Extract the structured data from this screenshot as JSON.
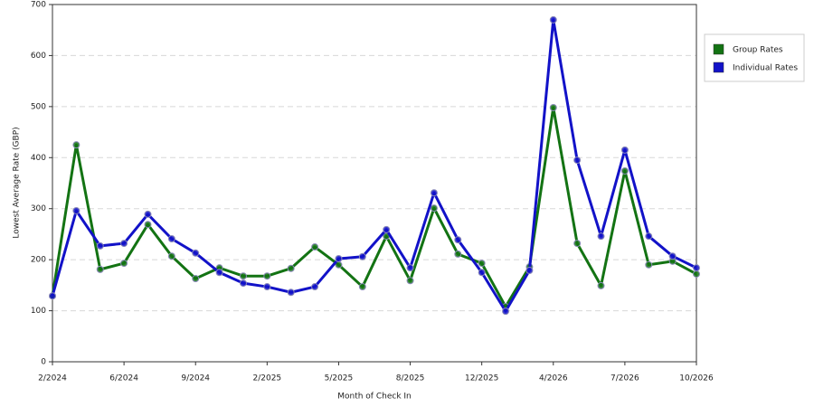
{
  "chart_data": {
    "type": "line",
    "x_label": "Month of Check In",
    "y_label": "Lowest Average Rate (GBP)",
    "categories": [
      "2/2024",
      null,
      null,
      "6/2024",
      null,
      null,
      "9/2024",
      null,
      null,
      "2/2025",
      null,
      null,
      "5/2025",
      null,
      null,
      "8/2025",
      null,
      null,
      "12/2025",
      null,
      null,
      "4/2026",
      null,
      null,
      "7/2026",
      null,
      null,
      "10/2026"
    ],
    "series": [
      {
        "name": "Group Rates",
        "color": "#137313",
        "values": [
          129,
          425,
          181,
          193,
          269,
          207,
          163,
          184,
          168,
          168,
          183,
          225,
          190,
          147,
          246,
          159,
          301,
          211,
          193,
          108,
          186,
          498,
          232,
          149,
          374,
          190,
          197,
          172
        ]
      },
      {
        "name": "Individual Rates",
        "color": "#1212c8",
        "values": [
          129,
          296,
          227,
          232,
          289,
          241,
          213,
          175,
          154,
          147,
          136,
          147,
          202,
          206,
          259,
          184,
          331,
          239,
          175,
          99,
          179,
          670,
          395,
          246,
          415,
          246,
          207,
          184
        ]
      }
    ],
    "ylim": [
      0,
      700
    ],
    "yticks": [
      0,
      100,
      200,
      300,
      400,
      500,
      600,
      700
    ],
    "grid": true,
    "legend": "right"
  }
}
